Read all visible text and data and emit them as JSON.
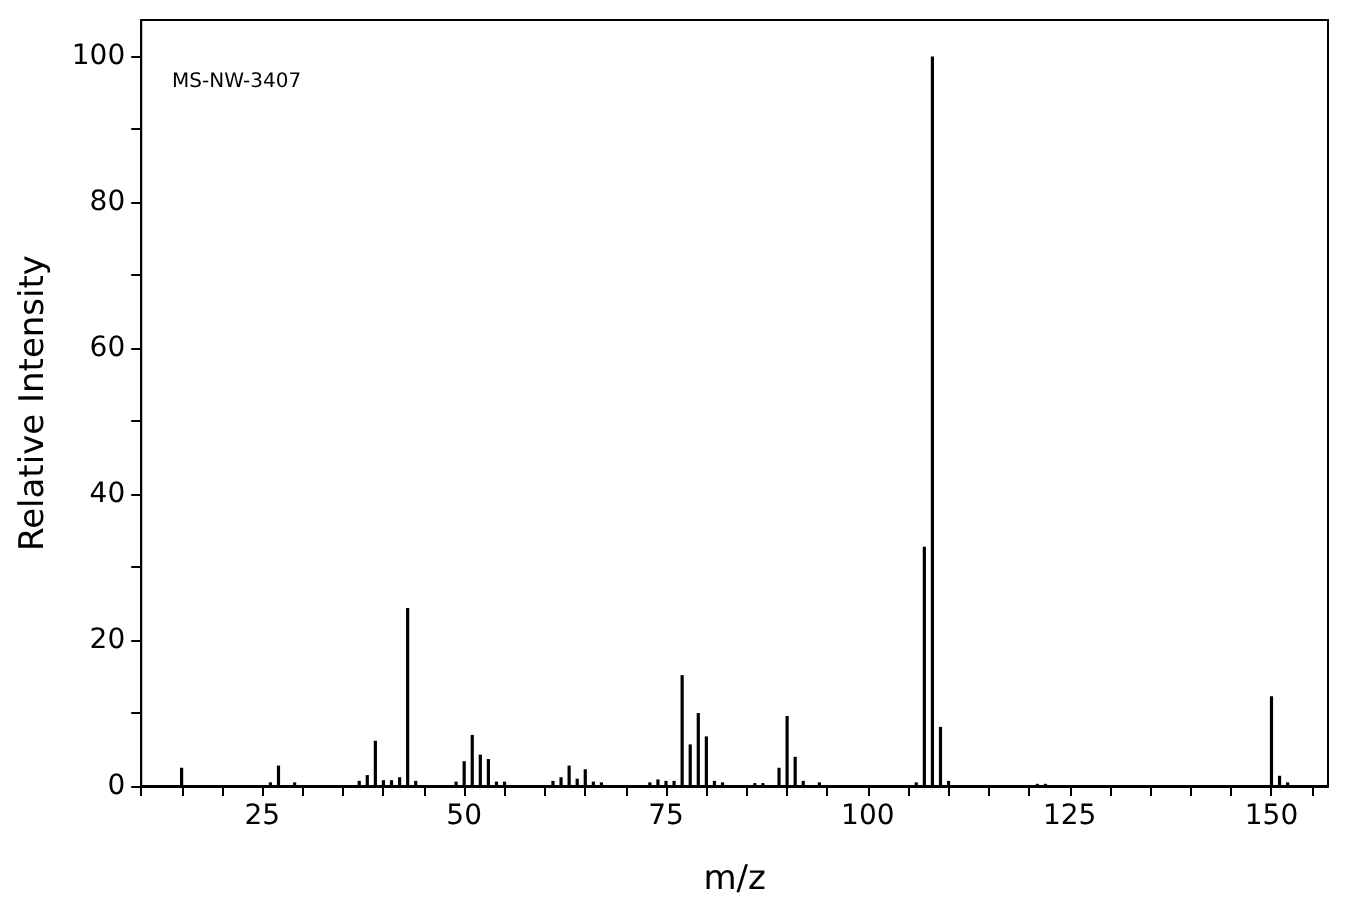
{
  "chart_data": {
    "type": "bar",
    "xlabel": "m/z",
    "ylabel": "Relative Intensity",
    "annotations": [
      "MS-NW-3407"
    ],
    "x": [
      15,
      26,
      27,
      29,
      37,
      38,
      39,
      40,
      41,
      42,
      43,
      44,
      49,
      50,
      51,
      52,
      53,
      54,
      55,
      61,
      62,
      63,
      64,
      65,
      66,
      67,
      73,
      74,
      75,
      76,
      77,
      78,
      79,
      80,
      81,
      82,
      86,
      87,
      89,
      90,
      91,
      92,
      94,
      106,
      107,
      108,
      109,
      110,
      121,
      122,
      150,
      151,
      152
    ],
    "values": [
      2.5,
      0.5,
      2.8,
      0.5,
      0.7,
      1.5,
      6.2,
      0.8,
      0.8,
      1.2,
      24.4,
      0.7,
      0.6,
      3.4,
      7,
      4.3,
      3.7,
      0.6,
      0.6,
      0.7,
      1.2,
      2.8,
      1,
      2.3,
      0.6,
      0.5,
      0.5,
      0.9,
      0.7,
      0.7,
      15.2,
      5.7,
      10,
      6.8,
      0.7,
      0.5,
      0.4,
      0.4,
      2.5,
      9.6,
      4,
      0.7,
      0.5,
      0.5,
      32.8,
      100,
      8.1,
      0.7,
      0.3,
      0.3,
      12.3,
      1.4,
      0.5
    ],
    "color": "#000000",
    "xlim": [
      10,
      157
    ],
    "ylim": [
      0,
      105
    ],
    "xticks": [
      {
        "value": 10,
        "label": null
      },
      {
        "value": 15,
        "label": null
      },
      {
        "value": 20,
        "label": null
      },
      25,
      {
        "value": 30,
        "label": null
      },
      {
        "value": 35,
        "label": null
      },
      {
        "value": 40,
        "label": null
      },
      {
        "value": 45,
        "label": null
      },
      50,
      {
        "value": 55,
        "label": null
      },
      {
        "value": 60,
        "label": null
      },
      {
        "value": 65,
        "label": null
      },
      {
        "value": 70,
        "label": null
      },
      75,
      {
        "value": 80,
        "label": null
      },
      {
        "value": 85,
        "label": null
      },
      {
        "value": 90,
        "label": null
      },
      {
        "value": 95,
        "label": null
      },
      100,
      {
        "value": 105,
        "label": null
      },
      {
        "value": 110,
        "label": null
      },
      {
        "value": 115,
        "label": null
      },
      {
        "value": 120,
        "label": null
      },
      125,
      {
        "value": 130,
        "label": null
      },
      {
        "value": 135,
        "label": null
      },
      {
        "value": 140,
        "label": null
      },
      {
        "value": 145,
        "label": null
      },
      150,
      {
        "value": 155,
        "label": null
      }
    ],
    "yticks": [
      0,
      {
        "value": 10,
        "label": null
      },
      20,
      {
        "value": 30,
        "label": null
      },
      40,
      {
        "value": 50,
        "label": null
      },
      60,
      {
        "value": 70,
        "label": null
      },
      80,
      {
        "value": 90,
        "label": null
      },
      100
    ],
    "grid": false
  }
}
